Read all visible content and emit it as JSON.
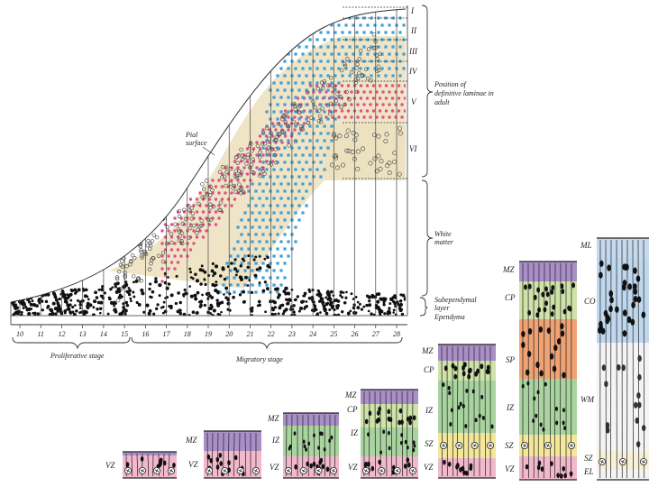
{
  "upper_figure": {
    "laminae": [
      "I",
      "II",
      "III",
      "IV",
      "V",
      "VI"
    ],
    "annotation_adult": "Position of definitive laminae in adult",
    "annotation_pial": "Pial surface",
    "annotation_white_matter": "White matter",
    "annotation_subependymal": "Subependymal layer",
    "annotation_ependyma": "Ependyma",
    "stage_proliferative": "Proliferative stage",
    "stage_migratory": "Migratory stage",
    "day_ticks": [
      "10",
      "11",
      "12",
      "13",
      "14",
      "15",
      "16",
      "17",
      "18",
      "19",
      "20",
      "21",
      "22",
      "23",
      "24",
      "25",
      "26",
      "27",
      "28"
    ]
  },
  "lower_columns": {
    "col1": {
      "zones": [
        "VZ"
      ]
    },
    "col2": {
      "zones": [
        "MZ",
        "VZ"
      ]
    },
    "col3": {
      "zones": [
        "MZ",
        "IZ",
        "VZ"
      ]
    },
    "col4": {
      "zones": [
        "MZ",
        "CP",
        "IZ",
        "VZ"
      ]
    },
    "col5": {
      "zones": [
        "MZ",
        "CP",
        "IZ",
        "SZ",
        "VZ"
      ]
    },
    "col6": {
      "zones": [
        "MZ",
        "CP",
        "SP",
        "IZ",
        "SZ",
        "VZ"
      ]
    },
    "col7": {
      "zones": [
        "ML",
        "CO",
        "WM",
        "SZ",
        "EL"
      ]
    }
  },
  "colors": {
    "marginal": "#a98fc8",
    "cortical_plate": "#cfe3a8",
    "subplate": "#f1a273",
    "intermediate": "#a9d4a0",
    "subventricular": "#f4e79a",
    "ventricular": "#f2b8cc",
    "blue_dots": "#3f9fd2",
    "pink_dots": "#e0508a",
    "cream_band": "#ede2c0"
  }
}
